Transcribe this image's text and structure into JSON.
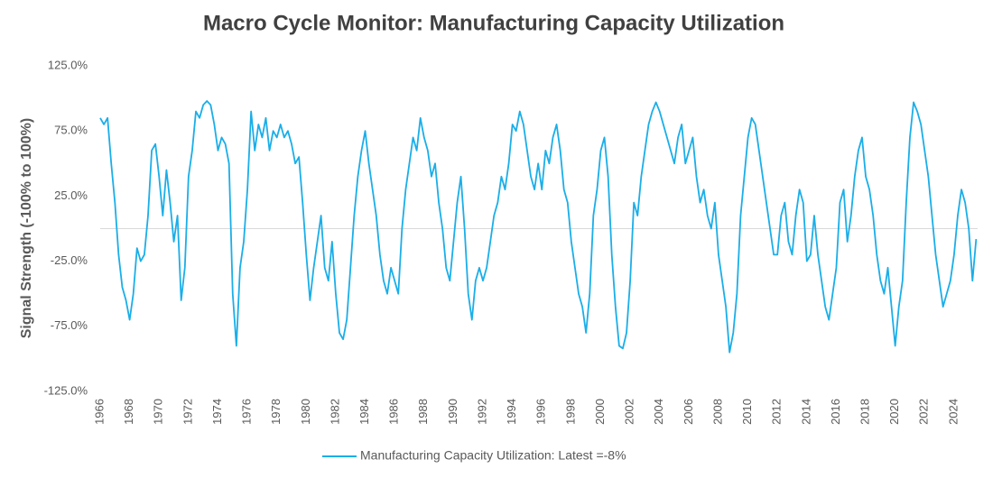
{
  "chart_data": {
    "type": "line",
    "title": "Macro Cycle Monitor: Manufacturing Capacity Utilization",
    "y_label": "Signal Strength (-100% to 100%)",
    "xlim": [
      1966,
      2025.6
    ],
    "xticks": [
      1966,
      1968,
      1970,
      1972,
      1974,
      1976,
      1978,
      1980,
      1982,
      1984,
      1986,
      1988,
      1990,
      1992,
      1994,
      1996,
      1998,
      2000,
      2002,
      2004,
      2006,
      2008,
      2010,
      2012,
      2014,
      2016,
      2018,
      2020,
      2022,
      2024
    ],
    "ylim": [
      -125,
      125
    ],
    "yticks": [
      {
        "value": 125,
        "label": "125.0%"
      },
      {
        "value": 75,
        "label": "75.0%"
      },
      {
        "value": 25,
        "label": "25.0%"
      },
      {
        "value": -25,
        "label": "-25.0%"
      },
      {
        "value": -75,
        "label": "-75.0%"
      },
      {
        "value": -125,
        "label": "-125.0%"
      }
    ],
    "zero_line": true,
    "legend": "bottom",
    "x": [
      1966,
      1966.25,
      1966.5,
      1966.75,
      1967,
      1967.25,
      1967.5,
      1967.75,
      1968,
      1968.25,
      1968.5,
      1968.75,
      1969,
      1969.25,
      1969.5,
      1969.75,
      1970,
      1970.25,
      1970.5,
      1970.75,
      1971,
      1971.25,
      1971.5,
      1971.75,
      1972,
      1972.25,
      1972.5,
      1972.75,
      1973,
      1973.25,
      1973.5,
      1973.75,
      1974,
      1974.25,
      1974.5,
      1974.75,
      1975,
      1975.25,
      1975.5,
      1975.75,
      1976,
      1976.25,
      1976.5,
      1976.75,
      1977,
      1977.25,
      1977.5,
      1977.75,
      1978,
      1978.25,
      1978.5,
      1978.75,
      1979,
      1979.25,
      1979.5,
      1979.75,
      1980,
      1980.25,
      1980.5,
      1980.75,
      1981,
      1981.25,
      1981.5,
      1981.75,
      1982,
      1982.25,
      1982.5,
      1982.75,
      1983,
      1983.25,
      1983.5,
      1983.75,
      1984,
      1984.25,
      1984.5,
      1984.75,
      1985,
      1985.25,
      1985.5,
      1985.75,
      1986,
      1986.25,
      1986.5,
      1986.75,
      1987,
      1987.25,
      1987.5,
      1987.75,
      1988,
      1988.25,
      1988.5,
      1988.75,
      1989,
      1989.25,
      1989.5,
      1989.75,
      1990,
      1990.25,
      1990.5,
      1990.75,
      1991,
      1991.25,
      1991.5,
      1991.75,
      1992,
      1992.25,
      1992.5,
      1992.75,
      1993,
      1993.25,
      1993.5,
      1993.75,
      1994,
      1994.25,
      1994.5,
      1994.75,
      1995,
      1995.25,
      1995.5,
      1995.75,
      1996,
      1996.25,
      1996.5,
      1996.75,
      1997,
      1997.25,
      1997.5,
      1997.75,
      1998,
      1998.25,
      1998.5,
      1998.75,
      1999,
      1999.25,
      1999.5,
      1999.75,
      2000,
      2000.25,
      2000.5,
      2000.75,
      2001,
      2001.25,
      2001.5,
      2001.75,
      2002,
      2002.25,
      2002.5,
      2002.75,
      2003,
      2003.25,
      2003.5,
      2003.75,
      2004,
      2004.25,
      2004.5,
      2004.75,
      2005,
      2005.25,
      2005.5,
      2005.75,
      2006,
      2006.25,
      2006.5,
      2006.75,
      2007,
      2007.25,
      2007.5,
      2007.75,
      2008,
      2008.25,
      2008.5,
      2008.75,
      2009,
      2009.25,
      2009.5,
      2009.75,
      2010,
      2010.25,
      2010.5,
      2010.75,
      2011,
      2011.25,
      2011.5,
      2011.75,
      2012,
      2012.25,
      2012.5,
      2012.75,
      2013,
      2013.25,
      2013.5,
      2013.75,
      2014,
      2014.25,
      2014.5,
      2014.75,
      2015,
      2015.25,
      2015.5,
      2015.75,
      2016,
      2016.25,
      2016.5,
      2016.75,
      2017,
      2017.25,
      2017.5,
      2017.75,
      2018,
      2018.25,
      2018.5,
      2018.75,
      2019,
      2019.25,
      2019.5,
      2019.75,
      2020,
      2020.25,
      2020.5,
      2020.75,
      2021,
      2021.25,
      2021.5,
      2021.75,
      2022,
      2022.25,
      2022.5,
      2022.75,
      2023,
      2023.25,
      2023.5,
      2023.75,
      2024,
      2024.25,
      2024.5,
      2024.75,
      2025,
      2025.25,
      2025.5
    ],
    "series": [
      {
        "name": "Manufacturing Capacity Utilization: Latest =-8%",
        "color": "#1aaee8",
        "values": [
          85,
          80,
          85,
          50,
          20,
          -20,
          -45,
          -55,
          -70,
          -50,
          -15,
          -25,
          -20,
          10,
          60,
          65,
          40,
          10,
          45,
          20,
          -10,
          10,
          -55,
          -30,
          40,
          60,
          90,
          85,
          95,
          98,
          95,
          80,
          60,
          70,
          65,
          50,
          -50,
          -90,
          -30,
          -10,
          30,
          90,
          60,
          80,
          70,
          85,
          60,
          75,
          70,
          80,
          70,
          75,
          65,
          50,
          55,
          20,
          -20,
          -55,
          -30,
          -10,
          10,
          -30,
          -40,
          -10,
          -50,
          -80,
          -85,
          -70,
          -30,
          10,
          40,
          60,
          75,
          50,
          30,
          10,
          -20,
          -40,
          -50,
          -30,
          -40,
          -50,
          0,
          30,
          50,
          70,
          60,
          85,
          70,
          60,
          40,
          50,
          20,
          0,
          -30,
          -40,
          -10,
          20,
          40,
          0,
          -50,
          -70,
          -40,
          -30,
          -40,
          -30,
          -10,
          10,
          20,
          40,
          30,
          50,
          80,
          75,
          90,
          80,
          60,
          40,
          30,
          50,
          30,
          60,
          50,
          70,
          80,
          60,
          30,
          20,
          -10,
          -30,
          -50,
          -60,
          -80,
          -50,
          10,
          30,
          60,
          70,
          40,
          -20,
          -60,
          -90,
          -92,
          -80,
          -40,
          20,
          10,
          40,
          60,
          80,
          90,
          97,
          90,
          80,
          70,
          60,
          50,
          70,
          80,
          50,
          60,
          70,
          40,
          20,
          30,
          10,
          0,
          20,
          -20,
          -40,
          -60,
          -95,
          -80,
          -50,
          10,
          40,
          70,
          85,
          80,
          60,
          40,
          20,
          0,
          -20,
          -20,
          10,
          20,
          -10,
          -20,
          10,
          30,
          20,
          -25,
          -20,
          10,
          -20,
          -40,
          -60,
          -70,
          -50,
          -30,
          20,
          30,
          -10,
          10,
          40,
          60,
          70,
          40,
          30,
          10,
          -20,
          -40,
          -50,
          -30,
          -60,
          -90,
          -60,
          -40,
          20,
          70,
          97,
          90,
          80,
          60,
          40,
          10,
          -20,
          -40,
          -60,
          -50,
          -40,
          -20,
          10,
          30,
          20,
          0,
          -40,
          -8
        ]
      }
    ]
  }
}
